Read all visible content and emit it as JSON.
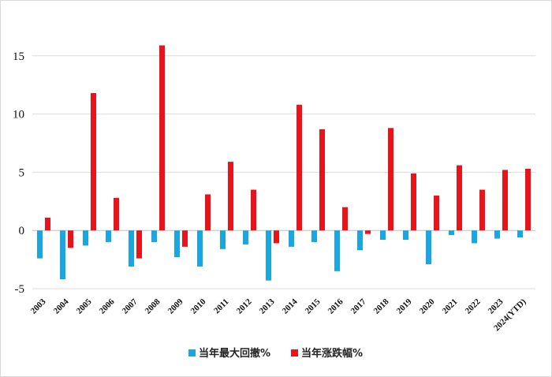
{
  "chart_data": {
    "type": "bar",
    "categories": [
      "2003",
      "2004",
      "2005",
      "2006",
      "2007",
      "2008",
      "2009",
      "2010",
      "2011",
      "2012",
      "2013",
      "2014",
      "2015",
      "2016",
      "2017",
      "2018",
      "2019",
      "2020",
      "2021",
      "2022",
      "2023",
      "2024(YTD)"
    ],
    "series": [
      {
        "name": "当年最大回撤%",
        "color": "#1aa7e0",
        "values": [
          -2.4,
          -4.2,
          -1.3,
          -1.0,
          -3.1,
          -1.0,
          -2.3,
          -3.1,
          -1.6,
          -1.2,
          -4.3,
          -1.4,
          -1.0,
          -3.5,
          -1.7,
          -0.8,
          -0.8,
          -2.9,
          -0.4,
          -1.1,
          -0.7,
          -0.6
        ]
      },
      {
        "name": "当年涨跌幅%",
        "color": "#e8141b",
        "values": [
          1.1,
          -1.5,
          11.8,
          2.8,
          -2.4,
          15.9,
          -1.4,
          3.1,
          5.9,
          3.5,
          -1.1,
          10.8,
          8.7,
          2.0,
          -0.3,
          8.8,
          4.9,
          3.0,
          5.6,
          3.5,
          5.2,
          5.3
        ]
      }
    ],
    "y_ticks": [
      -5,
      0,
      5,
      10,
      15
    ],
    "ylim": [
      -5,
      20
    ],
    "grid": true,
    "legend_position": "bottom"
  }
}
